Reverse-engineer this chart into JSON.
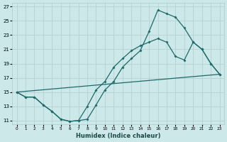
{
  "xlabel": "Humidex (Indice chaleur)",
  "bg_color": "#cce8e8",
  "grid_color": "#b8d4d4",
  "line_color": "#1a6b6b",
  "xlim": [
    -0.5,
    23.5
  ],
  "ylim": [
    10.5,
    27.5
  ],
  "xticks": [
    0,
    1,
    2,
    3,
    4,
    5,
    6,
    7,
    8,
    9,
    10,
    11,
    12,
    13,
    14,
    15,
    16,
    17,
    18,
    19,
    20,
    21,
    22,
    23
  ],
  "yticks": [
    11,
    13,
    15,
    17,
    19,
    21,
    23,
    25,
    27
  ],
  "line1_x": [
    0,
    1,
    2,
    3,
    4,
    5,
    6,
    7,
    8,
    9,
    10,
    11,
    12,
    13,
    14,
    15,
    16,
    17,
    18,
    19,
    20,
    21,
    22,
    23
  ],
  "line1_y": [
    15,
    14.3,
    14.3,
    13.2,
    12.3,
    11.2,
    10.9,
    11.0,
    11.2,
    13.2,
    15.3,
    16.5,
    18.5,
    19.7,
    20.8,
    23.5,
    26.5,
    26.0,
    25.5,
    24.0,
    22.0,
    21.0,
    19.0,
    17.5
  ],
  "line2_x": [
    0,
    1,
    2,
    3,
    4,
    5,
    6,
    7,
    8,
    9,
    10,
    11,
    12,
    13,
    14,
    15,
    16,
    17,
    18,
    19,
    20,
    21,
    22,
    23
  ],
  "line2_y": [
    15,
    14.3,
    14.3,
    13.2,
    12.3,
    11.2,
    10.9,
    11.0,
    13.0,
    15.3,
    16.5,
    18.5,
    19.7,
    20.8,
    21.5,
    22.0,
    22.5,
    22.0,
    20.0,
    19.5,
    22.0,
    21.0,
    19.0,
    17.5
  ],
  "line3_x": [
    0,
    23
  ],
  "line3_y": [
    15,
    17.5
  ]
}
